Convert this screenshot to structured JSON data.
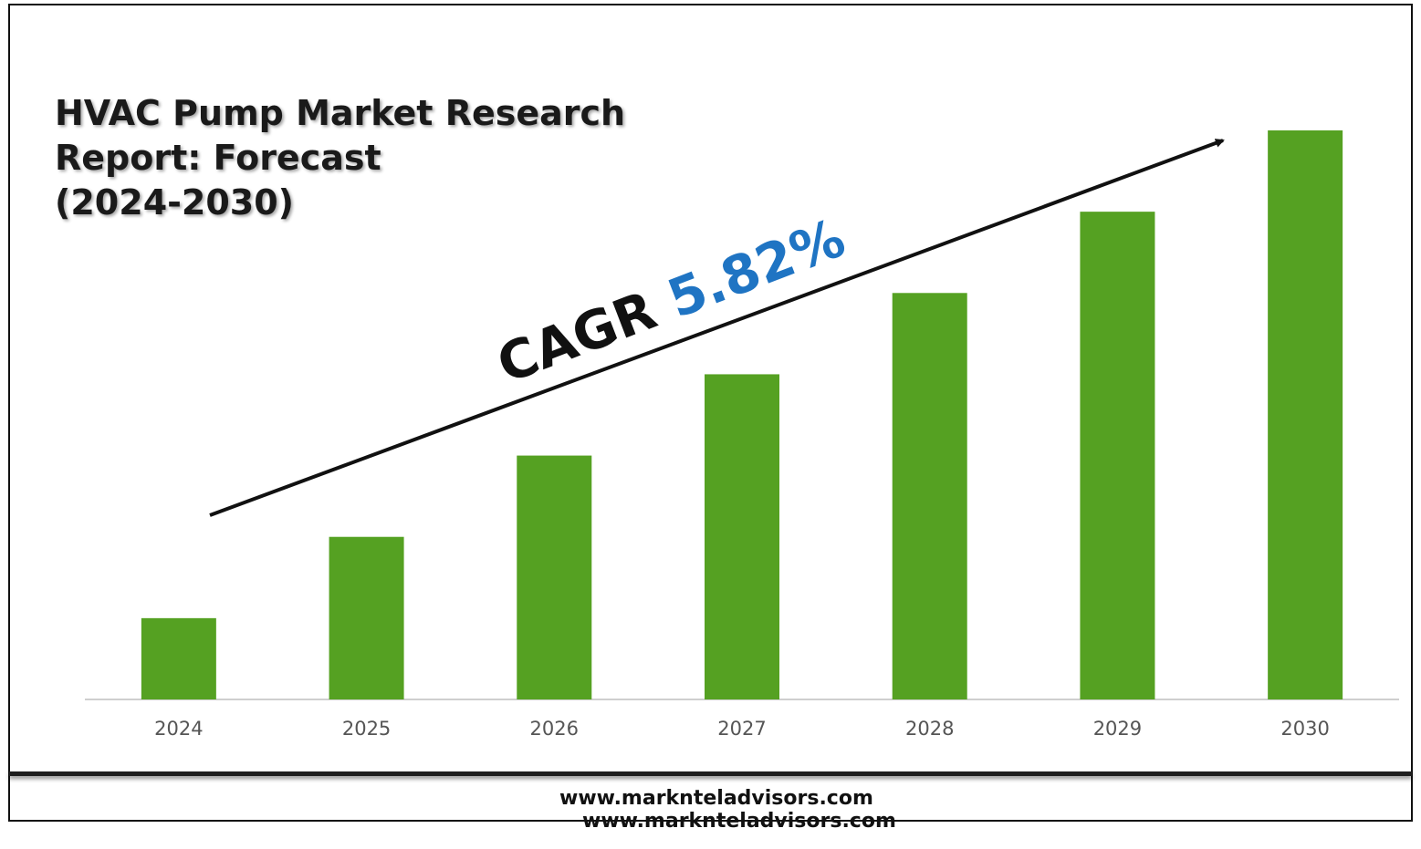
{
  "title_lines": [
    "HVAC Pump Market Research",
    "Report: Forecast",
    "(2024-2030)"
  ],
  "annotation": {
    "label": "CAGR",
    "value": "5.82%"
  },
  "footer": {
    "website": "www.marknteladvisors.com",
    "website_shadow": "www.marknteladvisors.com"
  },
  "colors": {
    "bar": "#55a122",
    "cagr_value": "#1f74c3",
    "arrow": "#111111",
    "axis": "#cfcfcf"
  },
  "chart_data": {
    "type": "bar",
    "title": "HVAC Pump Market Research Report: Forecast (2024-2030)",
    "categories": [
      "2024",
      "2025",
      "2026",
      "2027",
      "2028",
      "2029",
      "2030"
    ],
    "values": [
      1.0,
      2.0,
      3.0,
      4.0,
      5.0,
      6.0,
      7.0
    ],
    "ylim": [
      0,
      7.0
    ],
    "grid": false,
    "legend": "none",
    "trend_arrow": true
  }
}
